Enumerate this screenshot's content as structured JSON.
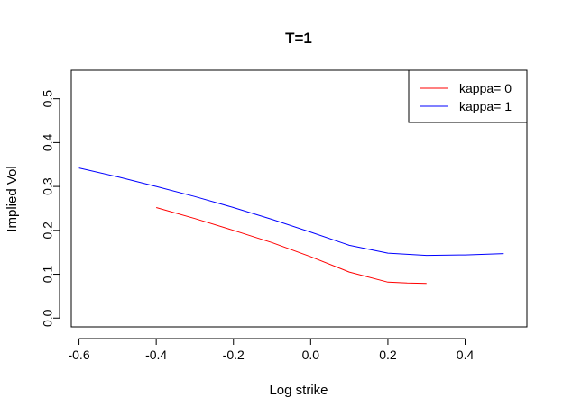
{
  "chart_data": {
    "type": "line",
    "title": "T=1",
    "xlabel": "Log strike",
    "ylabel": "Implied Vol",
    "xlim": [
      -0.62,
      0.56
    ],
    "ylim": [
      -0.02,
      0.565
    ],
    "x_ticks": [
      -0.6,
      -0.4,
      -0.2,
      0.0,
      0.2,
      0.4
    ],
    "x_tick_labels": [
      "-0.6",
      "-0.4",
      "-0.2",
      "0.0",
      "0.2",
      "0.4"
    ],
    "y_ticks": [
      0.0,
      0.1,
      0.2,
      0.3,
      0.4,
      0.5
    ],
    "y_tick_labels": [
      "0.0",
      "0.1",
      "0.2",
      "0.3",
      "0.4",
      "0.5"
    ],
    "grid": false,
    "legend_position": "top-right",
    "series": [
      {
        "name": "kappa= 0",
        "color": "#ff0000",
        "x": [
          -0.4,
          -0.3,
          -0.2,
          -0.1,
          0.0,
          0.1,
          0.2,
          0.25,
          0.3
        ],
        "y": [
          0.252,
          0.227,
          0.2,
          0.172,
          0.14,
          0.105,
          0.082,
          0.08,
          0.079
        ]
      },
      {
        "name": "kappa= 1",
        "color": "#0000ff",
        "x": [
          -0.6,
          -0.5,
          -0.4,
          -0.3,
          -0.2,
          -0.1,
          0.0,
          0.1,
          0.2,
          0.3,
          0.4,
          0.5
        ],
        "y": [
          0.342,
          0.322,
          0.3,
          0.277,
          0.252,
          0.225,
          0.196,
          0.166,
          0.148,
          0.143,
          0.144,
          0.147
        ]
      }
    ]
  }
}
